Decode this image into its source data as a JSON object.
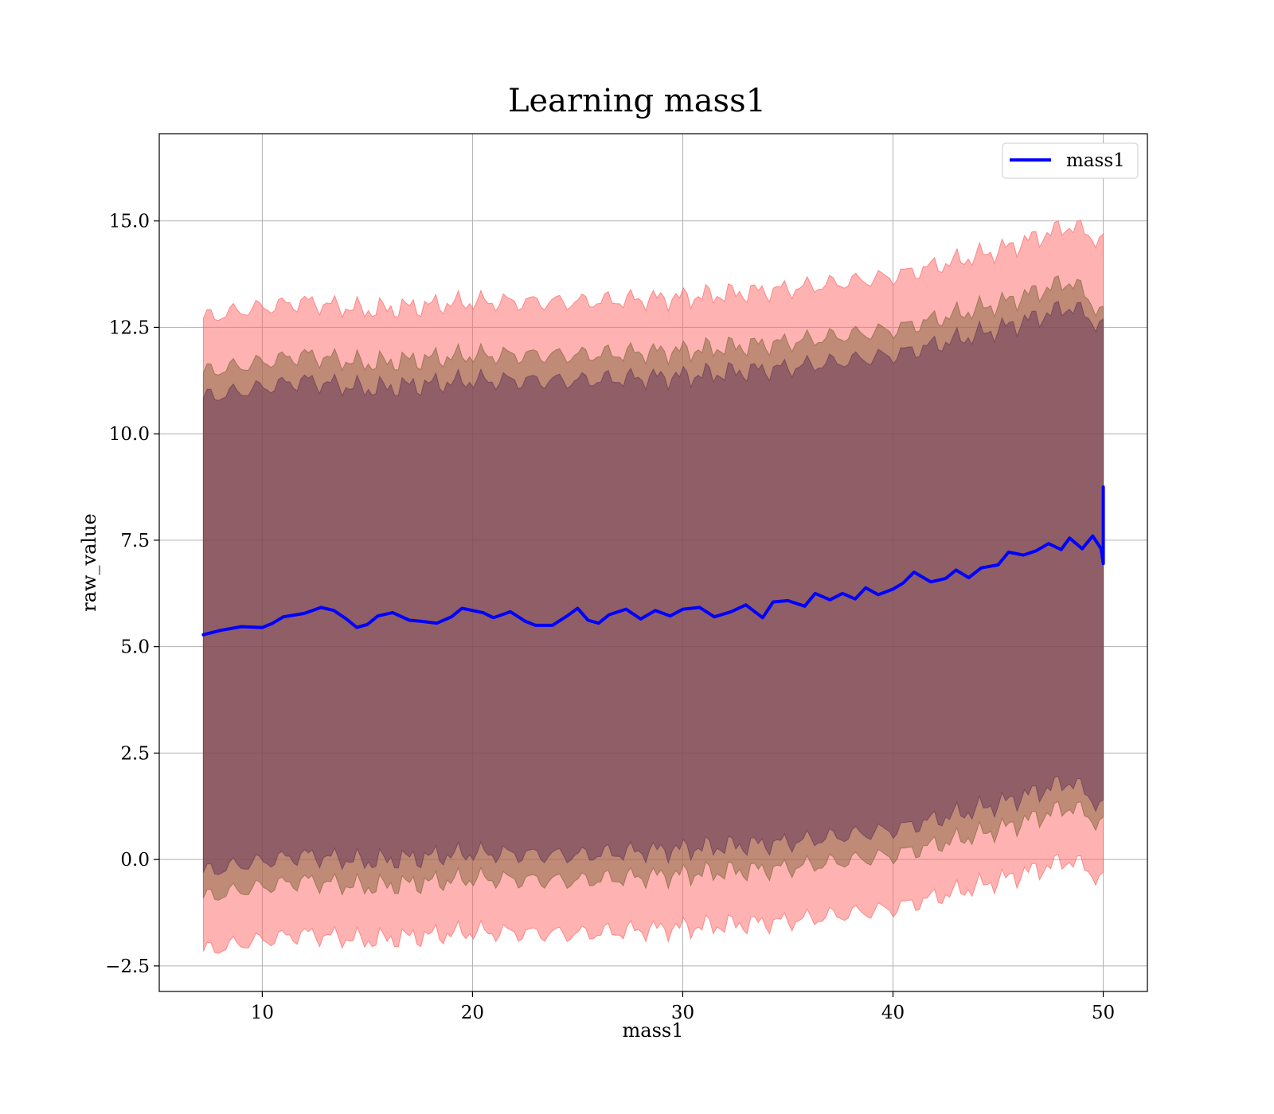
{
  "chart_data": {
    "type": "line",
    "title": "Learning mass1",
    "xlabel": "mass1",
    "ylabel": "raw_value",
    "xlim": [
      5.1,
      52.1
    ],
    "ylim": [
      -3.1,
      17.05
    ],
    "x_ticks": [
      10,
      20,
      30,
      40,
      50
    ],
    "x_tick_labels": [
      "10",
      "20",
      "30",
      "40",
      "50"
    ],
    "y_ticks": [
      -2.5,
      0.0,
      2.5,
      5.0,
      7.5,
      10.0,
      12.5,
      15.0
    ],
    "y_tick_labels": [
      "−2.5",
      "0.0",
      "2.5",
      "5.0",
      "7.5",
      "10.0",
      "12.5",
      "15.0"
    ],
    "grid": true,
    "legend": {
      "position": "top-right",
      "entries": [
        {
          "label": "mass1",
          "color": "#0000ff"
        }
      ]
    },
    "series": [
      {
        "name": "mass1",
        "color": "#0000ff",
        "points": [
          [
            7.2,
            5.28
          ],
          [
            8.0,
            5.38
          ],
          [
            9.0,
            5.47
          ],
          [
            10.0,
            5.45
          ],
          [
            10.5,
            5.55
          ],
          [
            11.0,
            5.7
          ],
          [
            12.0,
            5.78
          ],
          [
            12.8,
            5.92
          ],
          [
            13.4,
            5.85
          ],
          [
            14.0,
            5.65
          ],
          [
            14.5,
            5.45
          ],
          [
            15.0,
            5.52
          ],
          [
            15.5,
            5.72
          ],
          [
            16.2,
            5.8
          ],
          [
            17.0,
            5.62
          ],
          [
            17.5,
            5.6
          ],
          [
            18.3,
            5.55
          ],
          [
            19.0,
            5.7
          ],
          [
            19.5,
            5.9
          ],
          [
            20.5,
            5.8
          ],
          [
            21.0,
            5.68
          ],
          [
            21.8,
            5.82
          ],
          [
            22.5,
            5.6
          ],
          [
            23.0,
            5.5
          ],
          [
            23.8,
            5.5
          ],
          [
            24.5,
            5.72
          ],
          [
            25.0,
            5.9
          ],
          [
            25.5,
            5.62
          ],
          [
            26.0,
            5.55
          ],
          [
            26.5,
            5.75
          ],
          [
            27.3,
            5.88
          ],
          [
            28.0,
            5.65
          ],
          [
            28.7,
            5.85
          ],
          [
            29.4,
            5.72
          ],
          [
            30.0,
            5.88
          ],
          [
            30.8,
            5.92
          ],
          [
            31.5,
            5.7
          ],
          [
            32.3,
            5.82
          ],
          [
            33.0,
            5.98
          ],
          [
            33.8,
            5.68
          ],
          [
            34.3,
            6.05
          ],
          [
            35.0,
            6.08
          ],
          [
            35.8,
            5.95
          ],
          [
            36.3,
            6.25
          ],
          [
            37.0,
            6.1
          ],
          [
            37.6,
            6.25
          ],
          [
            38.2,
            6.12
          ],
          [
            38.7,
            6.38
          ],
          [
            39.3,
            6.22
          ],
          [
            40.0,
            6.35
          ],
          [
            40.5,
            6.5
          ],
          [
            41.0,
            6.75
          ],
          [
            41.8,
            6.52
          ],
          [
            42.5,
            6.6
          ],
          [
            43.0,
            6.8
          ],
          [
            43.6,
            6.62
          ],
          [
            44.2,
            6.85
          ],
          [
            45.0,
            6.92
          ],
          [
            45.5,
            7.22
          ],
          [
            46.2,
            7.15
          ],
          [
            46.8,
            7.25
          ],
          [
            47.4,
            7.42
          ],
          [
            48.0,
            7.28
          ],
          [
            48.4,
            7.55
          ],
          [
            49.0,
            7.3
          ],
          [
            49.5,
            7.6
          ],
          [
            49.9,
            7.3
          ],
          [
            50.0,
            6.95
          ],
          [
            50.0,
            8.75
          ]
        ]
      }
    ],
    "bands": [
      {
        "name": "",
        "color": "#ff6666",
        "opacity": 0.5,
        "upper": [
          [
            7.2,
            12.72
          ],
          [
            9.0,
            12.9
          ],
          [
            12.0,
            13.1
          ],
          [
            15.0,
            12.9
          ],
          [
            20.0,
            13.1
          ],
          [
            25.0,
            13.1
          ],
          [
            30.0,
            13.2
          ],
          [
            35.0,
            13.4
          ],
          [
            40.0,
            13.7
          ],
          [
            45.0,
            14.3
          ],
          [
            48.5,
            14.9
          ],
          [
            50.0,
            14.5
          ]
        ],
        "lower": [
          [
            7.2,
            -2.15
          ],
          [
            9.0,
            -1.97
          ],
          [
            12.0,
            -1.75
          ],
          [
            15.0,
            -1.9
          ],
          [
            20.0,
            -1.7
          ],
          [
            25.0,
            -1.75
          ],
          [
            30.0,
            -1.6
          ],
          [
            35.0,
            -1.45
          ],
          [
            40.0,
            -1.15
          ],
          [
            45.0,
            -0.5
          ],
          [
            48.5,
            0.0
          ],
          [
            50.0,
            -0.5
          ]
        ]
      },
      {
        "name": "",
        "color": "#8a6a45",
        "opacity": 0.55,
        "upper": [
          [
            7.2,
            11.45
          ],
          [
            9.0,
            11.6
          ],
          [
            12.0,
            11.85
          ],
          [
            15.0,
            11.65
          ],
          [
            20.0,
            11.85
          ],
          [
            25.0,
            11.85
          ],
          [
            30.0,
            11.95
          ],
          [
            35.0,
            12.15
          ],
          [
            40.0,
            12.45
          ],
          [
            45.0,
            13.05
          ],
          [
            48.5,
            13.6
          ],
          [
            50.0,
            12.8
          ]
        ],
        "lower": [
          [
            7.2,
            -0.9
          ],
          [
            9.0,
            -0.72
          ],
          [
            12.0,
            -0.5
          ],
          [
            15.0,
            -0.65
          ],
          [
            20.0,
            -0.45
          ],
          [
            25.0,
            -0.5
          ],
          [
            30.0,
            -0.35
          ],
          [
            35.0,
            -0.2
          ],
          [
            40.0,
            0.1
          ],
          [
            45.0,
            0.7
          ],
          [
            48.5,
            1.25
          ],
          [
            50.0,
            0.8
          ]
        ]
      },
      {
        "name": "",
        "color": "#6a3a5a",
        "opacity": 0.55,
        "upper": [
          [
            7.2,
            10.85
          ],
          [
            9.0,
            11.0
          ],
          [
            12.0,
            11.25
          ],
          [
            15.0,
            11.05
          ],
          [
            20.0,
            11.25
          ],
          [
            25.0,
            11.25
          ],
          [
            30.0,
            11.35
          ],
          [
            35.0,
            11.55
          ],
          [
            40.0,
            11.85
          ],
          [
            45.0,
            12.45
          ],
          [
            48.5,
            13.0
          ],
          [
            50.0,
            12.5
          ]
        ],
        "lower": [
          [
            7.2,
            -0.3
          ],
          [
            9.0,
            -0.12
          ],
          [
            12.0,
            0.1
          ],
          [
            15.0,
            -0.05
          ],
          [
            20.0,
            0.15
          ],
          [
            25.0,
            0.1
          ],
          [
            30.0,
            0.25
          ],
          [
            35.0,
            0.4
          ],
          [
            40.0,
            0.7
          ],
          [
            45.0,
            1.3
          ],
          [
            48.5,
            1.85
          ],
          [
            50.0,
            1.2
          ]
        ]
      }
    ]
  }
}
